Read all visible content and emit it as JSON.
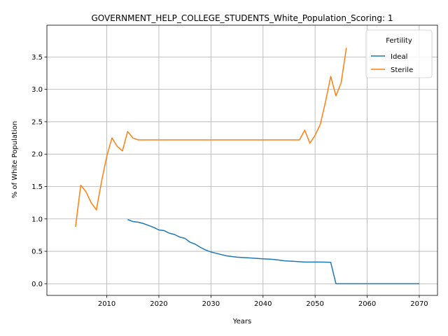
{
  "chart_data": {
    "type": "line",
    "title": "GOVERNMENT_HELP_COLLEGE_STUDENTS_White_Population_Scoring: 1",
    "xlabel": "Years",
    "ylabel": "% of White Population",
    "xlim": [
      1998.5,
      2073.5
    ],
    "ylim": [
      -0.18,
      3.99
    ],
    "x_ticks": [
      2010,
      2020,
      2030,
      2040,
      2050,
      2060,
      2070
    ],
    "y_ticks": [
      0.0,
      0.5,
      1.0,
      1.5,
      2.0,
      2.5,
      3.0,
      3.5
    ],
    "grid": true,
    "legend": {
      "title": "Fertility",
      "placement": "top-right"
    },
    "series": [
      {
        "name": "Ideal",
        "color": "#1f77b4",
        "x": [
          2014,
          2015,
          2016,
          2017,
          2018,
          2019,
          2020,
          2021,
          2022,
          2023,
          2024,
          2025,
          2026,
          2027,
          2028,
          2029,
          2030,
          2031,
          2032,
          2033,
          2034,
          2035,
          2036,
          2037,
          2038,
          2039,
          2040,
          2041,
          2042,
          2043,
          2044,
          2045,
          2046,
          2047,
          2048,
          2049,
          2050,
          2051,
          2052,
          2053,
          2054,
          2055,
          2056,
          2057,
          2058,
          2059,
          2060,
          2061,
          2062,
          2063,
          2064,
          2065,
          2066,
          2067,
          2068,
          2069,
          2070
        ],
        "values": [
          0.99,
          0.96,
          0.95,
          0.93,
          0.9,
          0.87,
          0.83,
          0.82,
          0.78,
          0.76,
          0.72,
          0.7,
          0.64,
          0.61,
          0.56,
          0.52,
          0.49,
          0.47,
          0.45,
          0.43,
          0.42,
          0.41,
          0.405,
          0.4,
          0.395,
          0.39,
          0.385,
          0.38,
          0.375,
          0.365,
          0.355,
          0.35,
          0.345,
          0.34,
          0.335,
          0.335,
          0.335,
          0.335,
          0.333,
          0.33,
          0.0,
          0.0,
          0.0,
          0.0,
          0.0,
          0.0,
          0.0,
          0.0,
          0.0,
          0.0,
          0.0,
          0.0,
          0.0,
          0.0,
          0.0,
          0.0,
          0.0
        ]
      },
      {
        "name": "Sterile",
        "color": "#ff7f0e",
        "x": [
          2004,
          2005,
          2006,
          2007,
          2008,
          2009,
          2010,
          2011,
          2012,
          2013,
          2014,
          2015,
          2016,
          2017,
          2018,
          2019,
          2020,
          2021,
          2022,
          2023,
          2024,
          2025,
          2026,
          2027,
          2028,
          2029,
          2030,
          2031,
          2032,
          2033,
          2034,
          2035,
          2036,
          2037,
          2038,
          2039,
          2040,
          2041,
          2042,
          2043,
          2044,
          2045,
          2046,
          2047,
          2048,
          2049,
          2050,
          2051,
          2052,
          2053,
          2054,
          2055,
          2056
        ],
        "values": [
          0.88,
          1.52,
          1.42,
          1.25,
          1.14,
          1.58,
          1.97,
          2.25,
          2.12,
          2.05,
          2.35,
          2.25,
          2.22,
          2.22,
          2.22,
          2.22,
          2.22,
          2.22,
          2.22,
          2.22,
          2.22,
          2.22,
          2.22,
          2.22,
          2.22,
          2.22,
          2.22,
          2.22,
          2.22,
          2.22,
          2.22,
          2.22,
          2.22,
          2.22,
          2.22,
          2.22,
          2.22,
          2.22,
          2.22,
          2.22,
          2.22,
          2.22,
          2.22,
          2.22,
          2.37,
          2.17,
          2.29,
          2.46,
          2.81,
          3.2,
          2.9,
          3.1,
          3.64
        ]
      }
    ]
  }
}
